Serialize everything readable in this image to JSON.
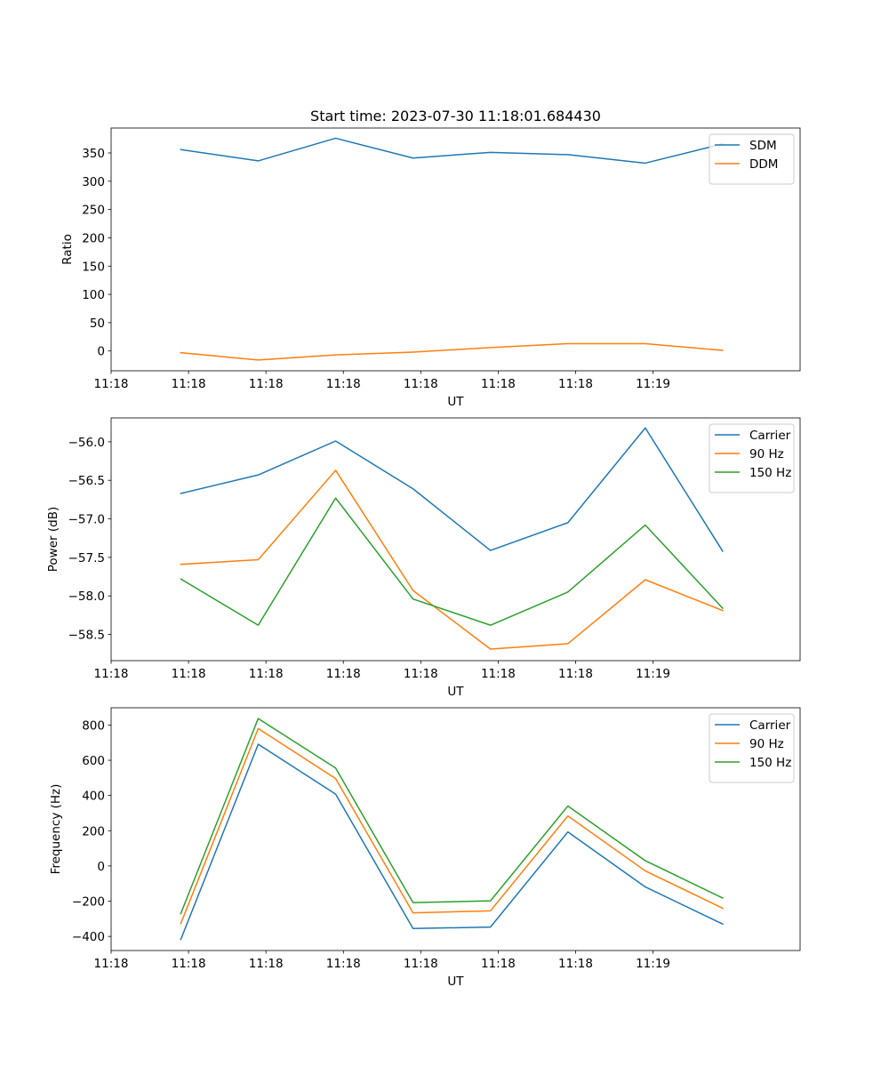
{
  "chart_data": [
    {
      "type": "line",
      "title": "Start time: 2023-07-30 11:18:01.684430",
      "xlabel": "UT",
      "ylabel": "Ratio",
      "x_tick_labels": [
        "11:18",
        "11:18",
        "11:18",
        "11:18",
        "11:18",
        "11:18",
        "11:18",
        "11:19"
      ],
      "ylim": [
        -35,
        394
      ],
      "y_ticks": [
        0,
        50,
        100,
        150,
        200,
        250,
        300,
        350
      ],
      "legend_position": "top-right",
      "grid": false,
      "x": [
        1,
        2,
        3,
        4,
        5,
        6,
        7,
        8
      ],
      "series": [
        {
          "name": "SDM",
          "color": "#1f77b4",
          "values": [
            356,
            336,
            376,
            341,
            351,
            347,
            332,
            366
          ]
        },
        {
          "name": "DDM",
          "color": "#ff7f0e",
          "values": [
            -3,
            -16,
            -7,
            -2,
            6,
            13,
            13,
            1
          ]
        }
      ]
    },
    {
      "type": "line",
      "title": "",
      "xlabel": "UT",
      "ylabel": "Power (dB)",
      "x_tick_labels": [
        "11:18",
        "11:18",
        "11:18",
        "11:18",
        "11:18",
        "11:18",
        "11:18",
        "11:19"
      ],
      "ylim": [
        -58.84,
        -55.69
      ],
      "y_ticks": [
        -58.5,
        -58.0,
        -57.5,
        -57.0,
        -56.5,
        -56.0
      ],
      "y_tick_labels": [
        "−58.5",
        "−58.0",
        "−57.5",
        "−57.0",
        "−56.5",
        "−56.0"
      ],
      "legend_position": "top-right",
      "grid": false,
      "x": [
        1,
        2,
        3,
        4,
        5,
        6,
        7,
        8
      ],
      "series": [
        {
          "name": "Carrier",
          "color": "#1f77b4",
          "values": [
            -56.67,
            -56.43,
            -55.99,
            -56.61,
            -57.41,
            -57.05,
            -55.82,
            -57.42
          ]
        },
        {
          "name": "90 Hz",
          "color": "#ff7f0e",
          "values": [
            -57.59,
            -57.53,
            -56.37,
            -57.93,
            -58.69,
            -58.62,
            -57.79,
            -58.19
          ]
        },
        {
          "name": "150 Hz",
          "color": "#2ca02c",
          "values": [
            -57.78,
            -58.38,
            -56.73,
            -58.04,
            -58.38,
            -57.95,
            -57.08,
            -58.16
          ]
        }
      ]
    },
    {
      "type": "line",
      "title": "",
      "xlabel": "UT",
      "ylabel": "Frequency (Hz)",
      "x_tick_labels": [
        "11:18",
        "11:18",
        "11:18",
        "11:18",
        "11:18",
        "11:18",
        "11:18",
        "11:19"
      ],
      "ylim": [
        -480,
        898
      ],
      "y_ticks": [
        -400,
        -200,
        0,
        200,
        400,
        600,
        800
      ],
      "y_tick_labels": [
        "−400",
        "−200",
        "0",
        "200",
        "400",
        "600",
        "800"
      ],
      "legend_position": "top-right",
      "grid": false,
      "x": [
        1,
        2,
        3,
        4,
        5,
        6,
        7,
        8
      ],
      "series": [
        {
          "name": "Carrier",
          "color": "#1f77b4",
          "values": [
            -417,
            691,
            408,
            -355,
            -347,
            193,
            -119,
            -330
          ]
        },
        {
          "name": "90 Hz",
          "color": "#ff7f0e",
          "values": [
            -327,
            780,
            496,
            -266,
            -255,
            284,
            -28,
            -240
          ]
        },
        {
          "name": "150 Hz",
          "color": "#2ca02c",
          "values": [
            -270,
            837,
            556,
            -208,
            -198,
            340,
            30,
            -182
          ]
        }
      ]
    }
  ]
}
